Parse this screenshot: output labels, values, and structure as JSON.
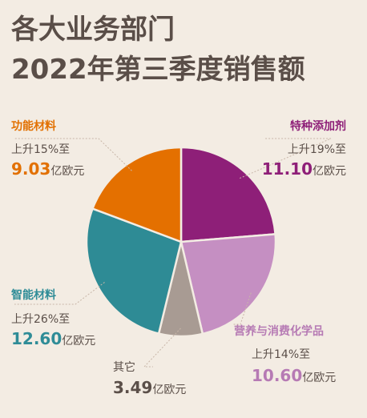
{
  "chart_data": {
    "type": "pie",
    "title_lines": [
      "各大业务部门",
      "2022年第三季度销售额"
    ],
    "unit": "亿欧元",
    "slices": [
      {
        "name": "特种添加剂",
        "change": "上升19%至",
        "value": 11.1,
        "value_label": "11.10",
        "unit_label": "亿欧元",
        "color": "#8e1f78",
        "label_color": "#8e1f78"
      },
      {
        "name": "营养与消费化学品",
        "change": "上升14%至",
        "value": 10.6,
        "value_label": "10.60",
        "unit_label": "亿欧元",
        "color": "#c58fc2",
        "label_color": "#b67ab4"
      },
      {
        "name": "其它",
        "change": "",
        "value": 3.49,
        "value_label": "3.49",
        "unit_label": "亿欧元",
        "color": "#a89b93",
        "label_color": "#5b4f49"
      },
      {
        "name": "智能材料",
        "change": "上升26%至",
        "value": 12.6,
        "value_label": "12.60",
        "unit_label": "亿欧元",
        "color": "#2e8b95",
        "label_color": "#2f8c97"
      },
      {
        "name": "功能材料",
        "change": "上升15%至",
        "value": 9.03,
        "value_label": "9.03",
        "unit_label": "亿欧元",
        "color": "#e47000",
        "label_color": "#e27000"
      }
    ],
    "legend": "none",
    "grid": false
  }
}
